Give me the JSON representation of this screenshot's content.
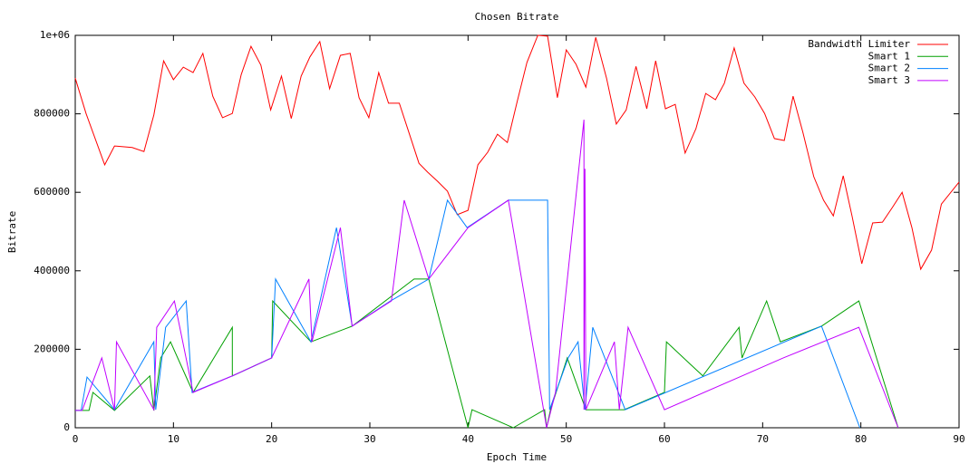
{
  "chart_data": {
    "type": "line",
    "title": "Chosen Bitrate",
    "x_label": "Epoch Time",
    "y_label": "Bitrate",
    "xlim": [
      0,
      90
    ],
    "xticks": [
      0,
      10,
      20,
      30,
      40,
      50,
      60,
      70,
      80,
      90
    ],
    "ylim": [
      0,
      1000000
    ],
    "yticks": [
      0,
      200000,
      400000,
      600000,
      800000,
      {
        "value": 1000000,
        "label": "1e+06"
      }
    ],
    "grid": false,
    "legend": "top-right",
    "series": [
      {
        "name": "Bandwidth Limiter",
        "color": "#ff0000",
        "x": [
          0,
          1.1,
          3,
          4,
          5.8,
          7,
          8,
          9,
          10,
          11,
          12,
          13,
          14,
          15,
          16,
          16.9,
          17.9,
          18.9,
          19.9,
          21,
          22,
          23,
          23.9,
          24.9,
          25.9,
          27,
          28,
          28.9,
          29.9,
          30.9,
          31.9,
          33,
          34,
          35,
          35.9,
          36.9,
          37.9,
          38.9,
          40,
          41,
          42,
          43,
          44,
          45,
          46,
          47.1,
          48.1,
          49.1,
          50,
          51,
          52,
          53,
          54.1,
          55.1,
          56.1,
          57.1,
          58.2,
          59.1,
          60.1,
          61.1,
          62.1,
          63.2,
          64.2,
          65.2,
          66.1,
          67.1,
          68.1,
          69.2,
          70.2,
          71.2,
          72.2,
          73.1,
          74.1,
          75.2,
          76.2,
          77.2,
          78.2,
          79.1,
          80.1,
          81.2,
          82.2,
          83.2,
          84.2,
          85.2,
          86.1,
          87.2,
          88.2,
          90
        ],
        "values": [
          891000,
          801000,
          670000,
          718000,
          714000,
          704000,
          797000,
          935000,
          887000,
          919000,
          905000,
          954000,
          845000,
          790000,
          801000,
          900000,
          972000,
          924000,
          810000,
          896000,
          788000,
          896000,
          945000,
          984000,
          864000,
          949000,
          954000,
          841000,
          790000,
          905000,
          827000,
          827000,
          751000,
          674000,
          651000,
          628000,
          603000,
          543000,
          554000,
          670000,
          702000,
          748000,
          727000,
          831000,
          931000,
          1000000,
          998000,
          841000,
          963000,
          926000,
          868000,
          995000,
          891000,
          774000,
          810000,
          921000,
          813000,
          935000,
          813000,
          824000,
          700000,
          762000,
          852000,
          836000,
          878000,
          968000,
          878000,
          843000,
          801000,
          737000,
          732000,
          845000,
          753000,
          640000,
          580000,
          540000,
          642000,
          540000,
          418000,
          522000,
          524000,
          561000,
          600000,
          510000,
          404000,
          453000,
          570000,
          626000
        ]
      },
      {
        "name": "Smart 1",
        "color": "#00a000",
        "x": [
          0,
          1.4,
          1.8,
          4,
          7.6,
          8,
          8.7,
          9.7,
          12,
          16,
          16,
          20,
          20.1,
          24,
          28.2,
          34.5,
          36,
          40,
          40.4,
          44.6,
          47.8,
          48,
          48.4,
          50.1,
          52,
          55.9,
          60,
          60.2,
          63.9,
          67.6,
          67.9,
          70.4,
          71.8,
          76,
          79.8,
          83.8
        ],
        "values": [
          44000,
          44000,
          90000,
          44000,
          132000,
          44000,
          178000,
          219000,
          90000,
          256000,
          132000,
          178000,
          323000,
          219000,
          259000,
          379000,
          379000,
          0,
          46000,
          0,
          46000,
          0,
          46000,
          178000,
          46000,
          46000,
          90000,
          219000,
          132000,
          256000,
          178000,
          323000,
          219000,
          259000,
          323000,
          0
        ]
      },
      {
        "name": "Smart 2",
        "color": "#0080ff",
        "x": [
          0,
          0.6,
          1.2,
          4,
          8,
          8.2,
          9.2,
          11.3,
          11.9,
          16,
          20,
          20.4,
          24,
          26.6,
          28.2,
          32.1,
          36,
          37.9,
          39.9,
          44.1,
          48.1,
          48.3,
          50.2,
          51.2,
          51.9,
          52.7,
          56,
          76,
          79.9
        ],
        "values": [
          44000,
          44000,
          129000,
          46000,
          219000,
          46000,
          256000,
          323000,
          90000,
          132000,
          178000,
          379000,
          219000,
          510000,
          259000,
          323000,
          379000,
          580000,
          510000,
          580000,
          580000,
          46000,
          178000,
          219000,
          46000,
          256000,
          46000,
          259000,
          0
        ]
      },
      {
        "name": "Smart 3",
        "color": "#c000ff",
        "x": [
          0,
          0.7,
          2.7,
          4,
          4.2,
          8,
          8.3,
          10.1,
          12,
          16,
          20,
          23.8,
          24.1,
          27,
          28.2,
          32.2,
          33.5,
          36,
          40,
          44.1,
          48,
          48.9,
          51.8,
          51.8,
          51.9,
          52,
          54.9,
          55.4,
          56.3,
          60,
          67.9,
          72.1,
          79.8,
          83.8
        ],
        "values": [
          44000,
          44000,
          178000,
          46000,
          219000,
          46000,
          256000,
          323000,
          90000,
          132000,
          178000,
          379000,
          219000,
          510000,
          259000,
          323000,
          580000,
          379000,
          510000,
          580000,
          0,
          90000,
          785000,
          46000,
          660000,
          46000,
          219000,
          46000,
          256000,
          46000,
          132000,
          178000,
          256000,
          0
        ]
      }
    ]
  }
}
